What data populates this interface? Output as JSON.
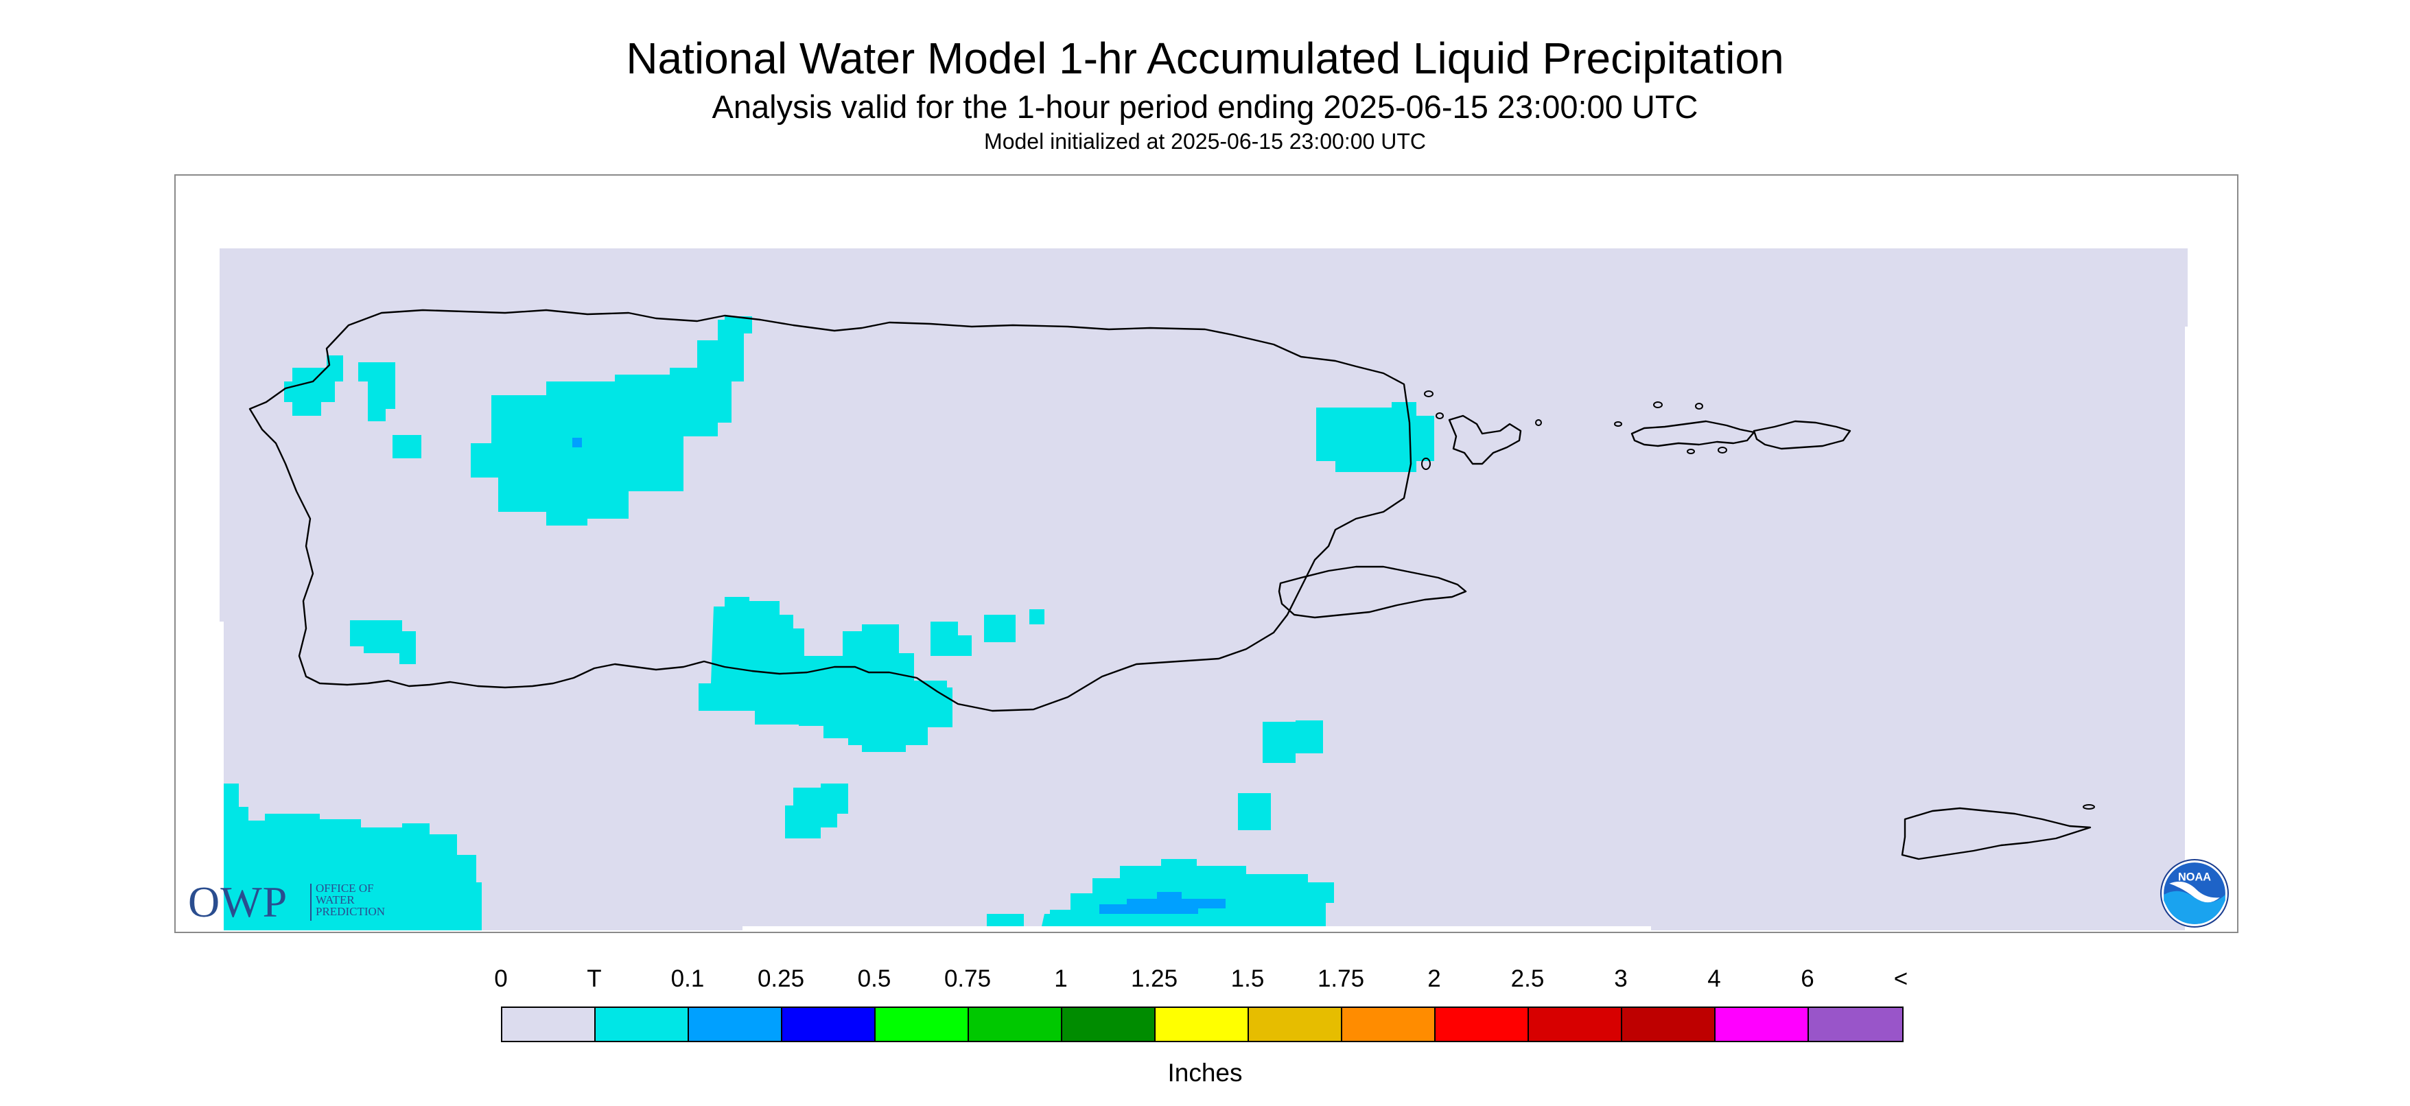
{
  "header": {
    "title": "National Water Model 1-hr Accumulated Liquid Precipitation",
    "subtitle": "Analysis valid for the 1-hour period ending 2025-06-15 23:00:00 UTC",
    "initialized": "Model initialized at 2025-06-15 23:00:00 UTC"
  },
  "map": {
    "region": "Puerto Rico and U.S. Virgin Islands",
    "background_color": "#dcdcee",
    "coastline_color": "#000000",
    "precip_areas": [
      {
        "category": "T",
        "color": "#00e6e6",
        "location": "northwest interior (Arecibo region)"
      },
      {
        "category": "T",
        "color": "#00e6e6",
        "location": "west coast near Aguadilla"
      },
      {
        "category": "T",
        "color": "#00e6e6",
        "location": "south-central coast near Ponce"
      },
      {
        "category": "T",
        "color": "#00e6e6",
        "location": "southwest coast"
      },
      {
        "category": "T",
        "color": "#00e6e6",
        "location": "northeast near Fajardo"
      },
      {
        "category": "T",
        "color": "#00e6e6",
        "location": "Caribbean Sea south of Puerto Rico"
      },
      {
        "category": "T",
        "color": "#00e6e6",
        "location": "southwest corner of domain"
      },
      {
        "category": "0.1",
        "color": "#00a0ff",
        "location": "small spots within northwest and offshore south areas"
      }
    ],
    "logos": {
      "owp_letters": "OWP",
      "owp_text": [
        "OFFICE OF",
        "WATER",
        "PREDICTION"
      ],
      "noaa_text": "NOAA"
    }
  },
  "legend": {
    "tick_labels": [
      "0",
      "T",
      "0.1",
      "0.25",
      "0.5",
      "0.75",
      "1",
      "1.25",
      "1.5",
      "1.75",
      "2",
      "2.5",
      "3",
      "4",
      "6",
      "<"
    ],
    "colors": [
      "#dcdcee",
      "#00e6e6",
      "#00a0ff",
      "#0000ff",
      "#00ff00",
      "#00c800",
      "#008c00",
      "#ffff00",
      "#e6bd00",
      "#ff8c00",
      "#ff0000",
      "#d70000",
      "#be0000",
      "#ff00ff",
      "#9955c9"
    ],
    "units": "Inches"
  }
}
